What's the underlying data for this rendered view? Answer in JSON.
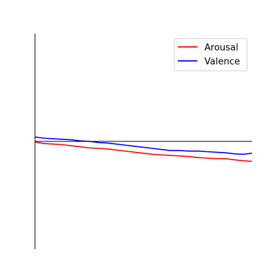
{
  "chart_data": {
    "type": "line",
    "title": "",
    "xlabel": "",
    "ylabel": "",
    "xlim": [
      0,
      24
    ],
    "ylim": [
      -1,
      1
    ],
    "grid": false,
    "legend_position": "top-right",
    "axes": {
      "left_spine": true,
      "bottom_spine": false,
      "zero_line": true,
      "ticks_shown": false
    },
    "x": [
      0,
      1,
      2,
      3,
      4,
      5,
      6,
      7,
      8,
      9,
      10,
      11,
      12,
      13,
      14,
      15,
      16,
      17,
      18,
      19,
      20,
      21,
      22,
      23,
      24
    ],
    "series": [
      {
        "name": "Arousal",
        "color": "#ff0000",
        "values": [
          -0.005,
          -0.02,
          -0.025,
          -0.03,
          -0.04,
          -0.05,
          -0.06,
          -0.065,
          -0.07,
          -0.08,
          -0.09,
          -0.1,
          -0.11,
          -0.12,
          -0.125,
          -0.13,
          -0.135,
          -0.14,
          -0.15,
          -0.155,
          -0.16,
          -0.16,
          -0.17,
          -0.18,
          -0.185
        ]
      },
      {
        "name": "Valence",
        "color": "#0000ff",
        "values": [
          0.04,
          0.03,
          0.025,
          0.02,
          0.015,
          0.005,
          0.0,
          -0.01,
          -0.015,
          -0.025,
          -0.035,
          -0.045,
          -0.055,
          -0.065,
          -0.075,
          -0.085,
          -0.085,
          -0.09,
          -0.09,
          -0.095,
          -0.1,
          -0.105,
          -0.115,
          -0.12,
          -0.11
        ]
      }
    ]
  }
}
